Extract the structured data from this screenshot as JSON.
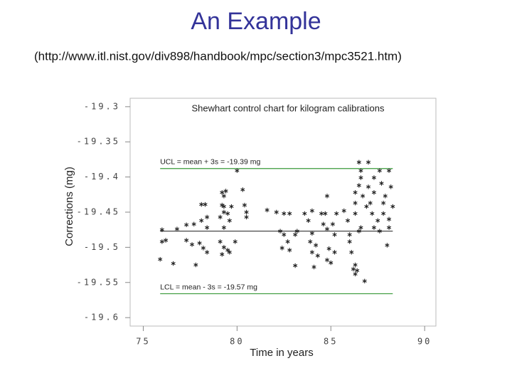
{
  "header": {
    "title": "An Example",
    "subtitle": "(http://www.itl.nist.gov/div898/handbook/mpc/section3/mpc3521.htm)"
  },
  "chart_data": {
    "type": "scatter",
    "title": "Shewhart control chart for kilogram calibrations",
    "xlabel": "Time in years",
    "ylabel": "Corrections (mg)",
    "xlim": [
      74.3,
      90.6
    ],
    "ylim": [
      -19.612,
      -19.288
    ],
    "xticks": [
      75,
      80,
      85,
      90
    ],
    "yticks": [
      -19.3,
      -19.35,
      -19.4,
      -19.45,
      -19.5,
      -19.55,
      -19.6
    ],
    "grid": false,
    "x": [
      76.0,
      76.0,
      75.9,
      76.2,
      76.6,
      76.8,
      77.3,
      77.3,
      77.7,
      77.6,
      77.8,
      78.0,
      78.1,
      78.3,
      78.2,
      78.4,
      78.4,
      78.1,
      78.4,
      79.2,
      79.3,
      79.4,
      79.2,
      79.3,
      79.3,
      79.1,
      79.5,
      79.6,
      79.3,
      79.1,
      79.3,
      79.5,
      79.2,
      79.6,
      79.9,
      79.7,
      80.0,
      80.3,
      80.4,
      80.5,
      80.5,
      81.6,
      82.1,
      82.5,
      82.8,
      82.3,
      82.5,
      82.4,
      82.7,
      82.8,
      83.1,
      83.2,
      83.1,
      83.6,
      83.8,
      83.9,
      84.0,
      84.0,
      84.0,
      84.2,
      84.3,
      84.1,
      84.5,
      84.6,
      84.7,
      84.8,
      84.8,
      84.9,
      85.0,
      85.1,
      85.2,
      85.2,
      85.3,
      84.8,
      85.7,
      85.9,
      86.0,
      86.0,
      86.1,
      86.2,
      86.3,
      86.3,
      86.4,
      86.5,
      86.6,
      86.3,
      86.3,
      86.3,
      86.5,
      86.5,
      86.6,
      86.6,
      86.7,
      86.8,
      86.9,
      87.0,
      87.0,
      87.1,
      87.2,
      87.3,
      87.3,
      87.5,
      87.6,
      87.7,
      87.8,
      87.8,
      87.9,
      88.0,
      88.1,
      88.1,
      88.2,
      88.3,
      88.1,
      87.6,
      87.3
    ],
    "series": [
      {
        "color": "#222222",
        "values": [
          -19.475,
          -19.492,
          -19.517,
          -19.49,
          -19.523,
          -19.474,
          -19.468,
          -19.49,
          -19.467,
          -19.496,
          -19.525,
          -19.494,
          -19.439,
          -19.439,
          -19.501,
          -19.457,
          -19.472,
          -19.462,
          -19.507,
          -19.422,
          -19.427,
          -19.42,
          -19.44,
          -19.442,
          -19.45,
          -19.457,
          -19.452,
          -19.462,
          -19.472,
          -19.492,
          -19.5,
          -19.504,
          -19.51,
          -19.507,
          -19.492,
          -19.442,
          -19.391,
          -19.418,
          -19.44,
          -19.45,
          -19.457,
          -19.447,
          -19.45,
          -19.452,
          -19.452,
          -19.477,
          -19.482,
          -19.501,
          -19.492,
          -19.504,
          -19.482,
          -19.477,
          -19.526,
          -19.452,
          -19.462,
          -19.492,
          -19.448,
          -19.48,
          -19.507,
          -19.497,
          -19.512,
          -19.528,
          -19.452,
          -19.467,
          -19.452,
          -19.518,
          -19.474,
          -19.502,
          -19.522,
          -19.467,
          -19.482,
          -19.507,
          -19.452,
          -19.427,
          -19.448,
          -19.462,
          -19.482,
          -19.492,
          -19.507,
          -19.531,
          -19.525,
          -19.538,
          -19.533,
          -19.477,
          -19.472,
          -19.452,
          -19.437,
          -19.422,
          -19.412,
          -19.379,
          -19.401,
          -19.391,
          -19.427,
          -19.548,
          -19.442,
          -19.379,
          -19.414,
          -19.437,
          -19.452,
          -19.422,
          -19.472,
          -19.462,
          -19.391,
          -19.409,
          -19.437,
          -19.452,
          -19.427,
          -19.497,
          -19.472,
          -19.391,
          -19.414,
          -19.442,
          -19.46,
          -19.477,
          -19.401
        ]
      }
    ],
    "reference_lines": [
      {
        "value": -19.388,
        "label": "UCL = mean + 3s = -19.39 mg",
        "color": "#3a9a3a"
      },
      {
        "value": -19.477,
        "color": "#333333"
      },
      {
        "value": -19.566,
        "label": "LCL = mean - 3s = -19.57 mg",
        "color": "#3a9a3a"
      }
    ]
  }
}
